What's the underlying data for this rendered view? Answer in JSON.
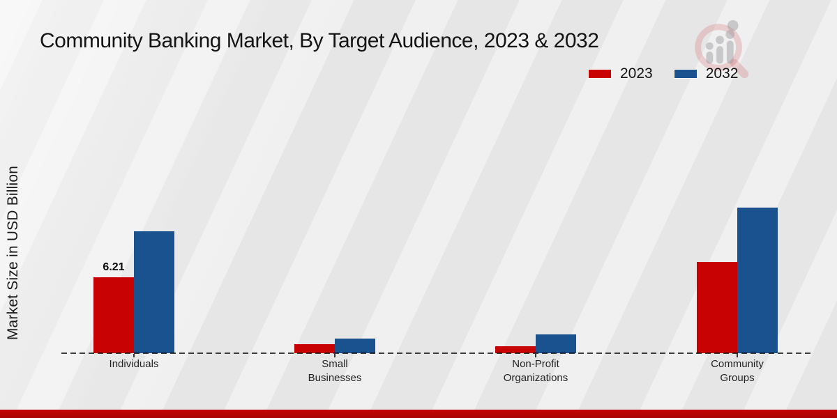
{
  "title": "Community Banking Market, By Target Audience, 2023 & 2032",
  "colors": {
    "series_2023": "#c80202",
    "series_2032": "#1a518f",
    "footer_strip": "#b20505",
    "background": "#ebebeb",
    "baseline": "#3e3e3e"
  },
  "watermark": {
    "name": "market-research-magnifier-chart-logo"
  },
  "chart_data": {
    "type": "bar",
    "title": "Community Banking Market, By Target Audience, 2023 & 2032",
    "categories": [
      "Individuals",
      "Small Businesses",
      "Non-Profit Organizations",
      "Community Groups"
    ],
    "category_lines": [
      [
        "Individuals"
      ],
      [
        "Small",
        "Businesses"
      ],
      [
        "Non-Profit",
        "Organizations"
      ],
      [
        "Community",
        "Groups"
      ]
    ],
    "series": [
      {
        "name": "2023",
        "color": "#c80202",
        "values": [
          6.21,
          0.74,
          0.57,
          7.46
        ],
        "value_labels": [
          "6.21",
          "",
          "",
          ""
        ]
      },
      {
        "name": "2032",
        "color": "#1a518f",
        "values": [
          9.97,
          1.2,
          1.54,
          11.91
        ],
        "value_labels": [
          "",
          "",
          "",
          ""
        ]
      }
    ],
    "xlabel": "",
    "ylabel": "Market Size in USD Billion",
    "ylim": [
      0,
      12.5
    ],
    "grid": false,
    "y_axis_ticks_visible": false,
    "legend_position": "top-right",
    "baseline_style": "dashed"
  }
}
